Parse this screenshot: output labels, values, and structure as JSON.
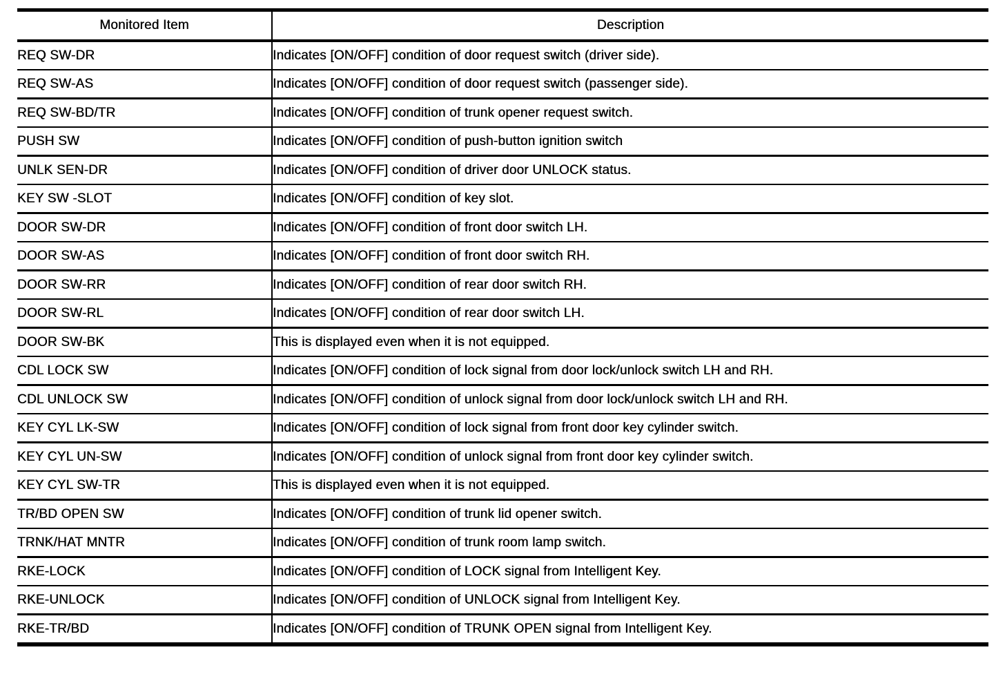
{
  "table": {
    "headers": {
      "item": "Monitored Item",
      "description": "Description"
    },
    "rows": [
      {
        "item": "REQ SW-DR",
        "desc": "Indicates [ON/OFF] condition of door request switch (driver side)."
      },
      {
        "item": "REQ SW-AS",
        "desc": "Indicates [ON/OFF] condition of door request switch (passenger side)."
      },
      {
        "item": "REQ SW-BD/TR",
        "desc": "Indicates [ON/OFF] condition of trunk opener request switch."
      },
      {
        "item": "PUSH SW",
        "desc": "Indicates [ON/OFF] condition of push-button ignition switch"
      },
      {
        "item": "UNLK SEN-DR",
        "desc": "Indicates [ON/OFF] condition of driver door UNLOCK status."
      },
      {
        "item": "KEY SW -SLOT",
        "desc": "Indicates [ON/OFF] condition of key slot."
      },
      {
        "item": "DOOR SW-DR",
        "desc": "Indicates [ON/OFF] condition of front door switch LH."
      },
      {
        "item": "DOOR SW-AS",
        "desc": "Indicates [ON/OFF] condition of front door switch RH."
      },
      {
        "item": "DOOR SW-RR",
        "desc": "Indicates [ON/OFF] condition of rear door switch RH."
      },
      {
        "item": "DOOR SW-RL",
        "desc": "Indicates [ON/OFF] condition of rear door switch LH."
      },
      {
        "item": "DOOR SW-BK",
        "desc": "This is displayed even when it is not equipped."
      },
      {
        "item": "CDL LOCK SW",
        "desc": "Indicates [ON/OFF] condition of lock signal from door lock/unlock switch LH and RH."
      },
      {
        "item": "CDL UNLOCK SW",
        "desc": "Indicates [ON/OFF] condition of unlock signal from door lock/unlock switch LH and RH."
      },
      {
        "item": "KEY CYL LK-SW",
        "desc": "Indicates [ON/OFF] condition of lock signal from front door key cylinder switch."
      },
      {
        "item": "KEY CYL UN-SW",
        "desc": "Indicates [ON/OFF] condition of unlock signal from front door key cylinder switch."
      },
      {
        "item": "KEY CYL SW-TR",
        "desc": "This is displayed even when it is not equipped."
      },
      {
        "item": "TR/BD OPEN SW",
        "desc": "Indicates [ON/OFF] condition of trunk lid opener switch."
      },
      {
        "item": "TRNK/HAT MNTR",
        "desc": "Indicates [ON/OFF] condition of trunk room lamp switch."
      },
      {
        "item": "RKE-LOCK",
        "desc": "Indicates [ON/OFF] condition of LOCK signal from Intelligent Key."
      },
      {
        "item": "RKE-UNLOCK",
        "desc": "Indicates [ON/OFF] condition of UNLOCK signal from Intelligent Key."
      },
      {
        "item": "RKE-TR/BD",
        "desc": "Indicates [ON/OFF] condition of TRUNK OPEN signal from Intelligent Key."
      }
    ]
  },
  "colors": {
    "border": "#000000",
    "background": "#ffffff",
    "text": "#000000"
  }
}
